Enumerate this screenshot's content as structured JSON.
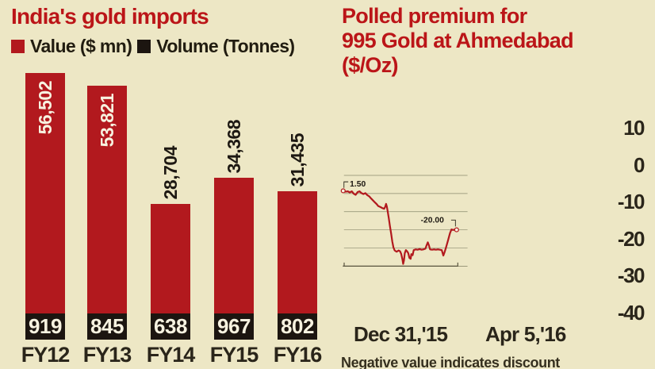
{
  "colors": {
    "background": "#EDE7C5",
    "title_red": "#BB1518",
    "bar_red": "#B2191E",
    "line_red": "#B2191E",
    "block_black": "#1C1510",
    "text_dark": "#2A251A",
    "label_white": "#F7F2E0",
    "gridline": "#8A8A6E",
    "axis": "#4B4632"
  },
  "chart_data": [
    {
      "type": "bar",
      "title": "India's gold imports",
      "categories": [
        "FY12",
        "FY13",
        "FY14",
        "FY15",
        "FY16"
      ],
      "series": [
        {
          "name": "Value ($ mn)",
          "color": "#B2191E",
          "values": [
            56502,
            53821,
            28704,
            34368,
            31435
          ],
          "value_labels": [
            "56,502",
            "53,821",
            "28,704",
            "34,368",
            "31,435"
          ]
        },
        {
          "name": "Volume (Tonnes)",
          "color": "#1C1510",
          "values": [
            919,
            845,
            638,
            967,
            802
          ],
          "value_labels": [
            "919",
            "845",
            "638",
            "967",
            "802"
          ]
        }
      ],
      "ylim": [
        0,
        60000
      ],
      "grid": false,
      "legend_position": "top"
    },
    {
      "type": "line",
      "title": "Polled premium for 995 Gold at Ahmedabad ($/Oz)",
      "title_lines": [
        "Polled premium for",
        "995 Gold at Ahmedabad",
        "($/Oz)"
      ],
      "ylim": [
        -40,
        10
      ],
      "y_ticks": [
        10,
        0,
        -10,
        -20,
        -30,
        -40
      ],
      "y_tick_labels": [
        "10",
        "0",
        "-10",
        "-20",
        "-30",
        "-40"
      ],
      "x_axis": {
        "start_label": "Dec 31,'15",
        "end_label": "Apr 5,'16"
      },
      "annotations": {
        "start": "1.50",
        "end": "-20.00"
      },
      "footnote": "Negative value indicates discount",
      "points": [
        [
          0,
          1.5
        ],
        [
          0.021,
          1.0
        ],
        [
          0.041,
          1.2
        ],
        [
          0.058,
          0.6
        ],
        [
          0.076,
          1.2
        ],
        [
          0.093,
          -0.1
        ],
        [
          0.11,
          -0.7
        ],
        [
          0.127,
          0.8
        ],
        [
          0.144,
          1.2
        ],
        [
          0.162,
          0.2
        ],
        [
          0.179,
          -0.3
        ],
        [
          0.196,
          0.2
        ],
        [
          0.213,
          -0.9
        ],
        [
          0.23,
          -1.6
        ],
        [
          0.244,
          -2.6
        ],
        [
          0.261,
          -3.7
        ],
        [
          0.278,
          -4.8
        ],
        [
          0.296,
          -5.9
        ],
        [
          0.309,
          -6.9
        ],
        [
          0.326,
          -7.4
        ],
        [
          0.344,
          -8.0
        ],
        [
          0.361,
          -8.4
        ],
        [
          0.371,
          -7.2
        ],
        [
          0.378,
          -5.7
        ],
        [
          0.385,
          -7.2
        ],
        [
          0.392,
          -9.7
        ],
        [
          0.402,
          -13.6
        ],
        [
          0.412,
          -17.9
        ],
        [
          0.423,
          -22.2
        ],
        [
          0.433,
          -26.5
        ],
        [
          0.443,
          -29.7
        ],
        [
          0.454,
          -31.4
        ],
        [
          0.471,
          -32.1
        ],
        [
          0.488,
          -31.4
        ],
        [
          0.502,
          -31.9
        ],
        [
          0.512,
          -33.4
        ],
        [
          0.522,
          -36.2
        ],
        [
          0.529,
          -38.8
        ],
        [
          0.536,
          -36.8
        ],
        [
          0.543,
          -32.9
        ],
        [
          0.553,
          -31.2
        ],
        [
          0.564,
          -31.9
        ],
        [
          0.574,
          -32.9
        ],
        [
          0.584,
          -35.5
        ],
        [
          0.595,
          -36.0
        ],
        [
          0.601,
          -33.4
        ],
        [
          0.612,
          -34.0
        ],
        [
          0.622,
          -31.2
        ],
        [
          0.639,
          -30.8
        ],
        [
          0.656,
          -31.0
        ],
        [
          0.674,
          -30.6
        ],
        [
          0.691,
          -31.0
        ],
        [
          0.708,
          -30.8
        ],
        [
          0.725,
          -30.4
        ],
        [
          0.735,
          -28.6
        ],
        [
          0.746,
          -26.9
        ],
        [
          0.756,
          -28.6
        ],
        [
          0.766,
          -30.8
        ],
        [
          0.784,
          -31.0
        ],
        [
          0.801,
          -30.8
        ],
        [
          0.818,
          -31.0
        ],
        [
          0.835,
          -30.8
        ],
        [
          0.852,
          -31.0
        ],
        [
          0.869,
          -31.2
        ],
        [
          0.883,
          -34.2
        ],
        [
          0.893,
          -32.5
        ],
        [
          0.907,
          -29.7
        ],
        [
          0.924,
          -25.9
        ],
        [
          0.942,
          -21.8
        ],
        [
          0.955,
          -19.8
        ],
        [
          0.969,
          -20.1
        ],
        [
          0.983,
          -19.9
        ],
        [
          1,
          -20.0
        ]
      ]
    }
  ]
}
